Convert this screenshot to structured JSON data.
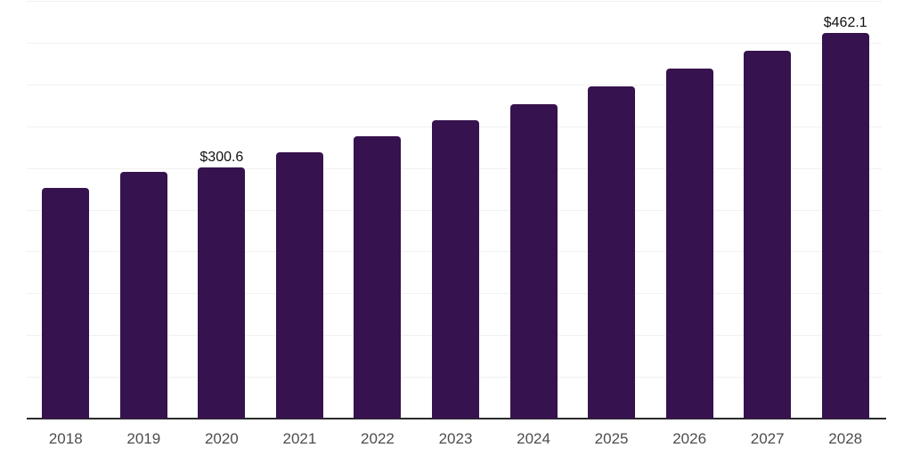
{
  "chart_data": {
    "type": "bar",
    "title": "",
    "categories": [
      "2018",
      "2019",
      "2020",
      "2021",
      "2022",
      "2023",
      "2024",
      "2025",
      "2026",
      "2027",
      "2028"
    ],
    "series": [
      {
        "name": "value",
        "values": [
          276.4,
          295.6,
          300.6,
          318.9,
          338.1,
          357.2,
          376.7,
          397.3,
          418.8,
          440.0,
          462.1
        ],
        "data_labels": [
          "",
          "",
          "$300.6",
          "",
          "",
          "",
          "",
          "",
          "",
          "",
          "$462.1"
        ]
      }
    ],
    "xlabel": "",
    "ylabel": "",
    "ylim": [
      0,
      500
    ],
    "ytick_step": 50,
    "grid": "horizontal-only",
    "y_axis_labels_visible": false,
    "legend_visible": false,
    "colors": {
      "bar": "#36124e",
      "gridline": "#f1f1f1",
      "axis_line": "#2b2b2b",
      "data_label_text": "#111111",
      "tick_label_text": "#4d4d4d",
      "background": "#ffffff"
    }
  }
}
